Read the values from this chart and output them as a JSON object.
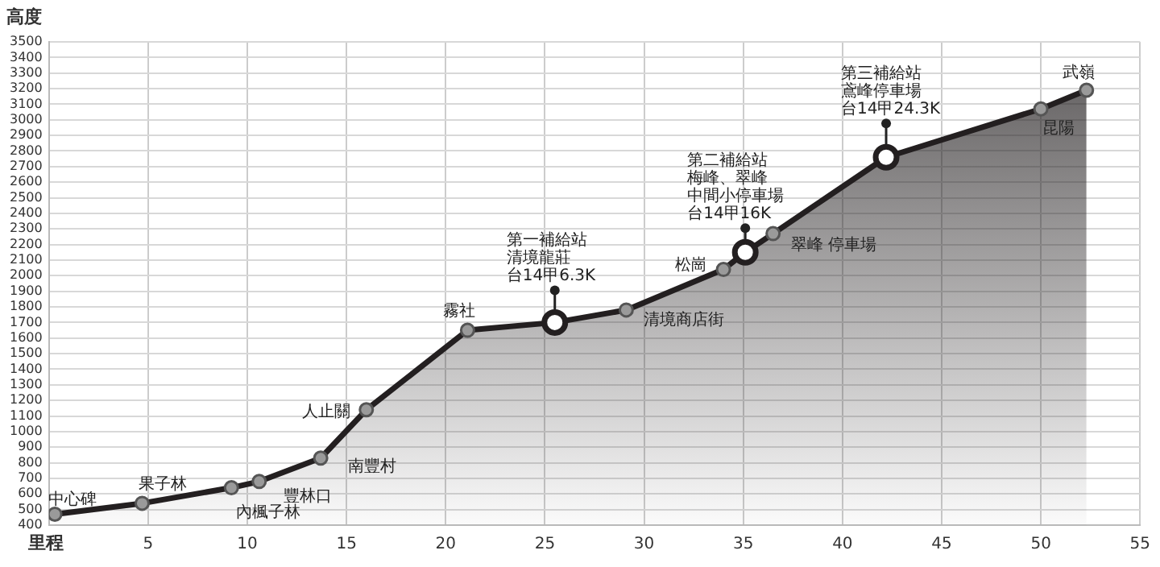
{
  "chart_data": {
    "type": "area",
    "xlabel": "里程",
    "ylabel": "高度",
    "xlim": [
      0,
      55
    ],
    "xticks": [
      5,
      10,
      15,
      20,
      25,
      30,
      35,
      40,
      45,
      50,
      55
    ],
    "ylim": [
      400,
      3500
    ],
    "yticks": [
      400,
      500,
      600,
      700,
      800,
      900,
      1000,
      1100,
      1200,
      1300,
      1400,
      1500,
      1600,
      1700,
      1800,
      1900,
      2000,
      2100,
      2200,
      2300,
      2400,
      2500,
      2600,
      2700,
      2800,
      2900,
      3000,
      3100,
      3200,
      3300,
      3400,
      3500
    ],
    "grid": true,
    "marker": "circle",
    "series": [
      {
        "color": "#231f20",
        "x": [
          0.3,
          4.7,
          9.2,
          10.6,
          13.7,
          16.0,
          21.1,
          25.5,
          29.1,
          34.0,
          35.1,
          36.5,
          42.2,
          50.0,
          52.3
        ],
        "values": [
          470,
          540,
          640,
          680,
          830,
          1140,
          1650,
          1700,
          1780,
          2040,
          2150,
          2270,
          2760,
          3070,
          3190
        ]
      },
      {
        "type": "scatter",
        "color": "#ffffff",
        "x": [
          25.5,
          35.1,
          42.2
        ],
        "values": [
          1700,
          2150,
          2760
        ]
      }
    ],
    "annotations": [
      {
        "text": "中心碑",
        "x": 0.3,
        "y": 470
      },
      {
        "text": "果子林",
        "x": 4.7,
        "y": 540
      },
      {
        "text": "內楓子林",
        "x": 9.2,
        "y": 640
      },
      {
        "text": "豐林口",
        "x": 10.6,
        "y": 680
      },
      {
        "text": "南豐村",
        "x": 13.7,
        "y": 830
      },
      {
        "text": "人止關",
        "x": 16.0,
        "y": 1140
      },
      {
        "text": "霧社",
        "x": 21.1,
        "y": 1650
      },
      "第一補給站",
      "清境龍莊",
      {
        "text": "台14甲6.3K",
        "x": 25.5,
        "y": 1700
      },
      {
        "text": "清境商店街",
        "x": 29.1,
        "y": 1780
      },
      {
        "text": "松崗",
        "x": 34.0,
        "y": 2040
      },
      "第二補給站",
      "梅峰、翠峰",
      "中間小停車場",
      {
        "text": "台14甲16K",
        "x": 35.1,
        "y": 2150
      },
      {
        "text": "翠峰 停車場",
        "x": 36.5,
        "y": 2270
      },
      "第三補給站",
      "鳶峰停車場",
      {
        "text": "台14甲24.3K",
        "x": 42.2,
        "y": 2760
      },
      {
        "text": "昆陽",
        "x": 50.0,
        "y": 3070
      },
      {
        "text": "武嶺",
        "x": 52.3,
        "y": 3190
      }
    ]
  }
}
